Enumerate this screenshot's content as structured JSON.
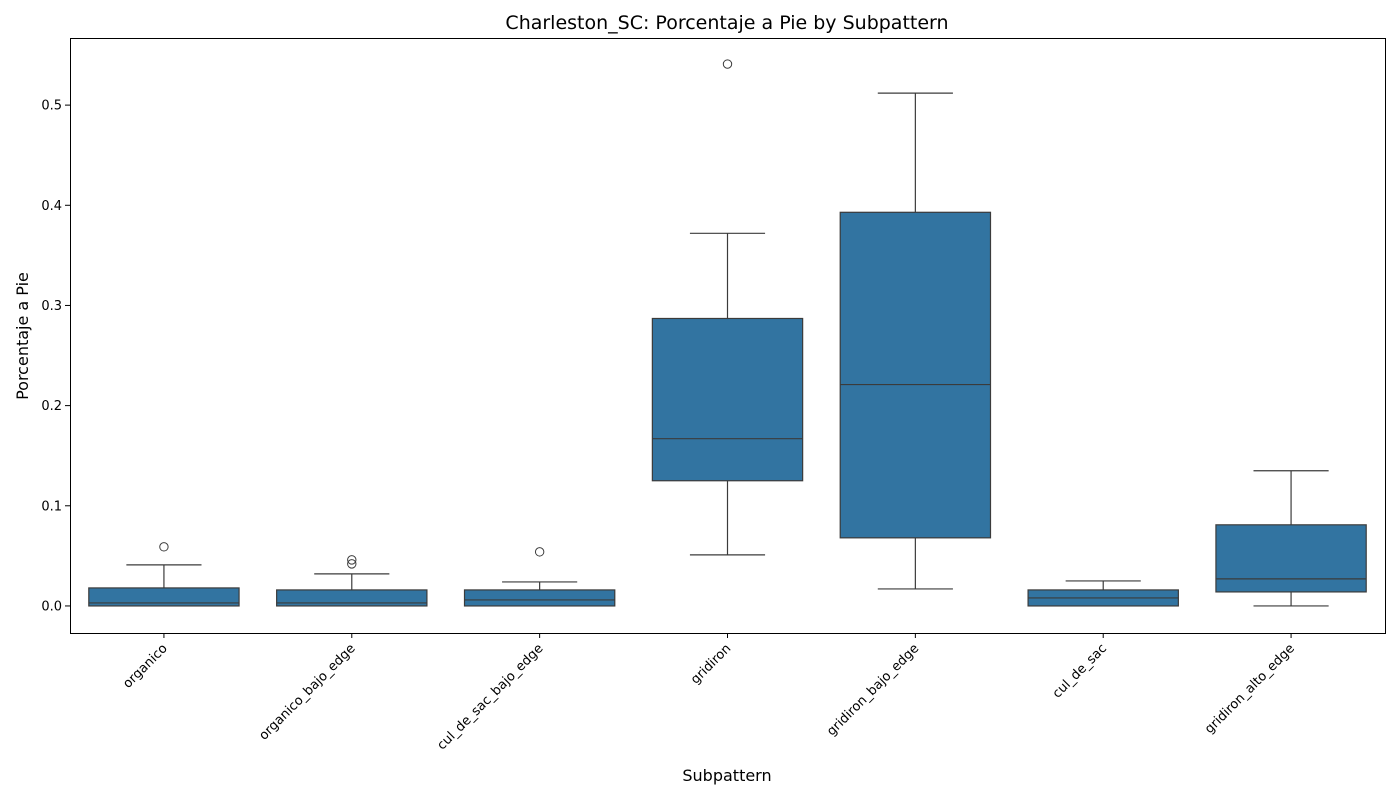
{
  "chart_data": {
    "type": "box",
    "title": "Charleston_SC: Porcentaje a Pie by Subpattern",
    "xlabel": "Subpattern",
    "ylabel": "Porcentaje a Pie",
    "ylim": [
      -0.027,
      0.567
    ],
    "yticks": [
      "0.0",
      "0.1",
      "0.2",
      "0.3",
      "0.4",
      "0.5"
    ],
    "grid": false,
    "legend": "none",
    "box_color": "#3274a1",
    "line_color": "#3b3b3b",
    "categories": [
      "organico",
      "organico_bajo_edge",
      "cul_de_sac_bajo_edge",
      "gridiron",
      "gridiron_bajo_edge",
      "cul_de_sac",
      "gridiron_alto_edge"
    ],
    "boxes": [
      {
        "whisker_low": 0.0,
        "q1": 0.0,
        "median": 0.003,
        "q3": 0.018,
        "whisker_high": 0.041,
        "outliers": [
          0.059
        ]
      },
      {
        "whisker_low": 0.0,
        "q1": 0.0,
        "median": 0.003,
        "q3": 0.016,
        "whisker_high": 0.032,
        "outliers": [
          0.042,
          0.046
        ]
      },
      {
        "whisker_low": 0.0,
        "q1": 0.0,
        "median": 0.006,
        "q3": 0.016,
        "whisker_high": 0.024,
        "outliers": [
          0.054
        ]
      },
      {
        "whisker_low": 0.051,
        "q1": 0.125,
        "median": 0.167,
        "q3": 0.287,
        "whisker_high": 0.372,
        "outliers": [
          0.541
        ]
      },
      {
        "whisker_low": 0.017,
        "q1": 0.068,
        "median": 0.221,
        "q3": 0.393,
        "whisker_high": 0.512,
        "outliers": []
      },
      {
        "whisker_low": 0.0,
        "q1": 0.0,
        "median": 0.008,
        "q3": 0.016,
        "whisker_high": 0.025,
        "outliers": []
      },
      {
        "whisker_low": 0.0,
        "q1": 0.014,
        "median": 0.027,
        "q3": 0.081,
        "whisker_high": 0.135,
        "outliers": []
      }
    ]
  }
}
